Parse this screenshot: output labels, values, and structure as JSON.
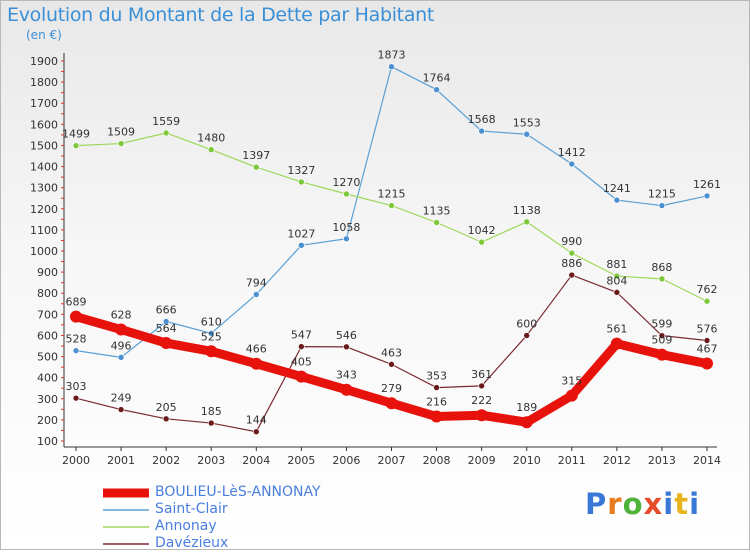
{
  "title": "Evolution du Montant de la Dette par Habitant",
  "unit": "(en €)",
  "brand": "Proxiti",
  "chart_data": {
    "type": "line",
    "x": [
      "2000",
      "2001",
      "2002",
      "2003",
      "2004",
      "2005",
      "2006",
      "2007",
      "2008",
      "2009",
      "2010",
      "2011",
      "2012",
      "2013",
      "2014"
    ],
    "yticks": [
      100,
      200,
      300,
      400,
      500,
      600,
      700,
      800,
      900,
      1000,
      1100,
      1200,
      1300,
      1400,
      1500,
      1600,
      1700,
      1800,
      1900
    ],
    "ylim": [
      100,
      1900
    ],
    "grid": false,
    "legend_position": "bottom-left",
    "series": [
      {
        "name": "BOULIEU-LèS-ANNONAY",
        "color": "#e8120c",
        "width": 9,
        "marker": "#e8120c",
        "values": [
          689,
          628,
          564,
          525,
          466,
          405,
          343,
          279,
          216,
          222,
          189,
          315,
          561,
          509,
          467
        ]
      },
      {
        "name": "Saint-Clair",
        "color": "#5a9fd4",
        "width": 1.2,
        "marker": "#4a8fcf",
        "values": [
          528,
          496,
          666,
          610,
          794,
          1027,
          1058,
          1873,
          1764,
          1568,
          1553,
          1412,
          1241,
          1215,
          1261
        ]
      },
      {
        "name": "Annonay",
        "color": "#9fd85a",
        "width": 1.2,
        "marker": "#7cc83a",
        "values": [
          1499,
          1509,
          1559,
          1480,
          1397,
          1327,
          1270,
          1215,
          1135,
          1042,
          1138,
          990,
          881,
          868,
          762
        ]
      },
      {
        "name": "Davézieux",
        "color": "#7a2a30",
        "width": 1.2,
        "marker": "#6a1a1a",
        "values": [
          303,
          249,
          205,
          185,
          144,
          547,
          546,
          463,
          353,
          361,
          600,
          886,
          804,
          599,
          576
        ]
      }
    ]
  }
}
